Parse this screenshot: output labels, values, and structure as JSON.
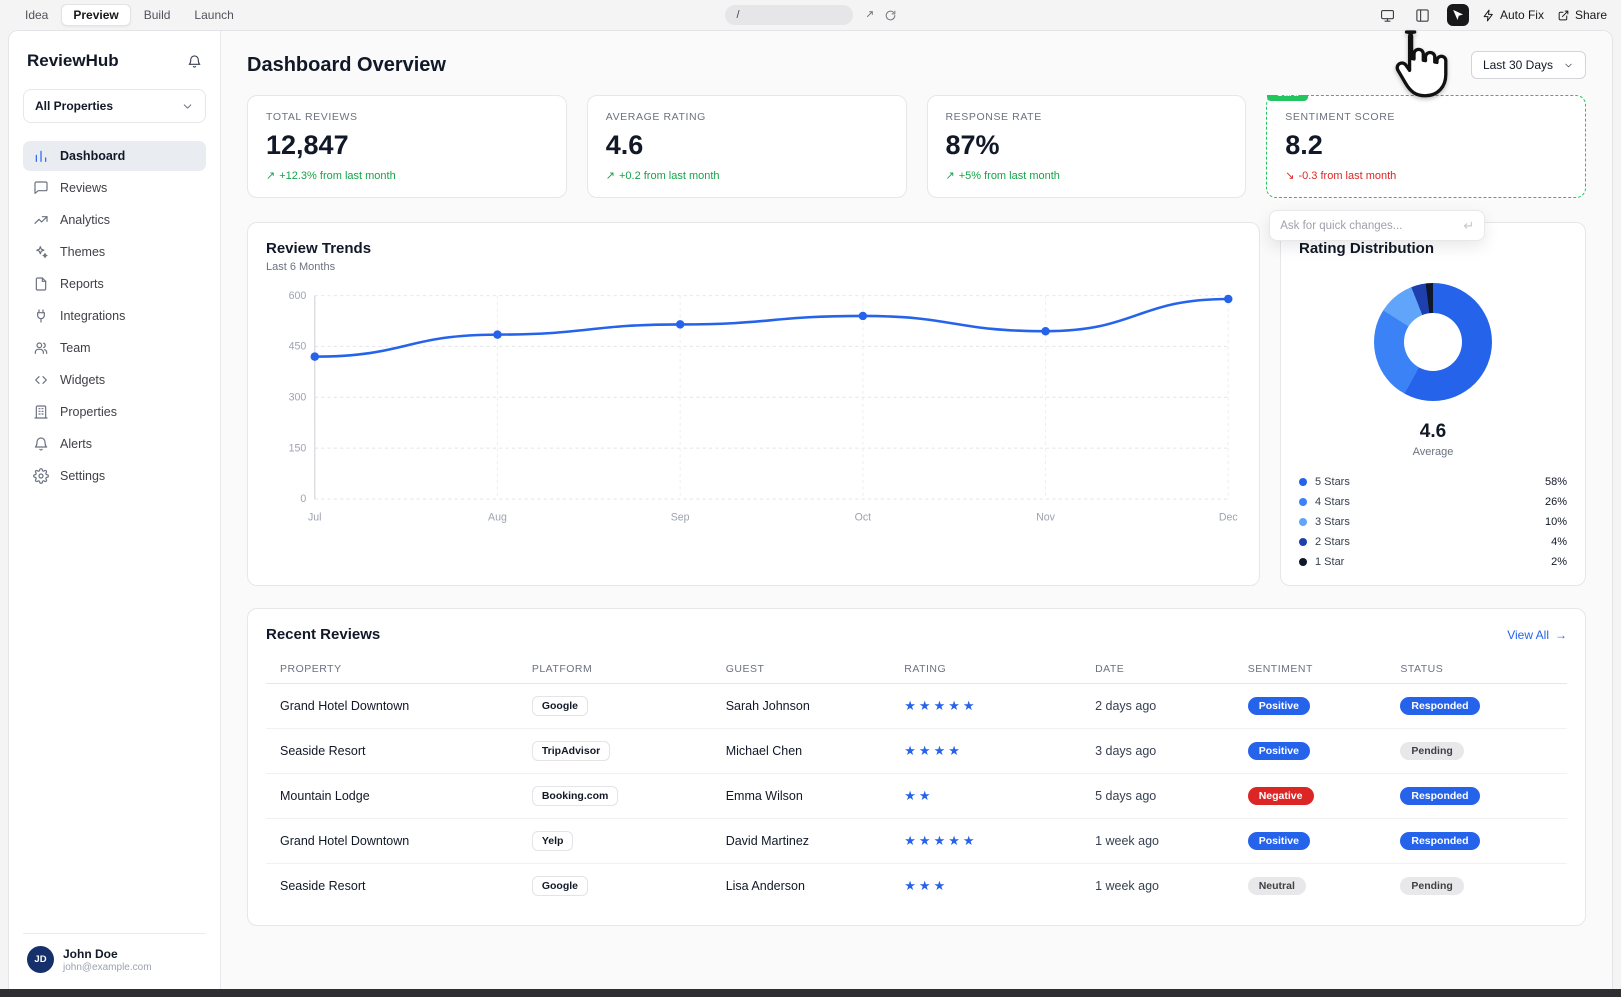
{
  "toolbar": {
    "nav": [
      {
        "label": "Idea",
        "active": false
      },
      {
        "label": "Preview",
        "active": true
      },
      {
        "label": "Build",
        "active": false
      },
      {
        "label": "Launch",
        "active": false
      }
    ],
    "url": "/",
    "auto_fix_label": "Auto Fix",
    "share_label": "Share"
  },
  "sidebar": {
    "brand": "ReviewHub",
    "property_selector": "All Properties",
    "items": [
      {
        "label": "Dashboard",
        "icon": "bar-chart-icon",
        "active": true
      },
      {
        "label": "Reviews",
        "icon": "chat-icon",
        "active": false
      },
      {
        "label": "Analytics",
        "icon": "trending-up-icon",
        "active": false
      },
      {
        "label": "Themes",
        "icon": "sparkles-icon",
        "active": false
      },
      {
        "label": "Reports",
        "icon": "file-icon",
        "active": false
      },
      {
        "label": "Integrations",
        "icon": "plug-icon",
        "active": false
      },
      {
        "label": "Team",
        "icon": "users-icon",
        "active": false
      },
      {
        "label": "Widgets",
        "icon": "code-icon",
        "active": false
      },
      {
        "label": "Properties",
        "icon": "building-icon",
        "active": false
      },
      {
        "label": "Alerts",
        "icon": "bell-icon",
        "active": false
      },
      {
        "label": "Settings",
        "icon": "gear-icon",
        "active": false
      }
    ],
    "user": {
      "initials": "JD",
      "name": "John Doe",
      "email": "john@example.com"
    }
  },
  "header": {
    "title": "Dashboard Overview",
    "date_range": "Last 30 Days"
  },
  "stats": [
    {
      "label": "TOTAL REVIEWS",
      "value": "12,847",
      "delta": "+12.3% from last month",
      "trend": "up",
      "selected": false
    },
    {
      "label": "AVERAGE RATING",
      "value": "4.6",
      "delta": "+0.2 from last month",
      "trend": "up",
      "selected": false
    },
    {
      "label": "RESPONSE RATE",
      "value": "87%",
      "delta": "+5% from last month",
      "trend": "up",
      "selected": false
    },
    {
      "label": "SENTIMENT SCORE",
      "value": "8.2",
      "delta": "-0.3 from last month",
      "trend": "down",
      "selected": true,
      "selection_badge": "Card"
    }
  ],
  "quick_edit": {
    "placeholder": "Ask for quick changes..."
  },
  "chart_data": [
    {
      "type": "line",
      "title": "Review Trends",
      "subtitle": "Last 6 Months",
      "x": [
        "Jul",
        "Aug",
        "Sep",
        "Oct",
        "Nov",
        "Dec"
      ],
      "series": [
        {
          "name": "Reviews",
          "values": [
            420,
            485,
            515,
            540,
            495,
            590
          ]
        }
      ],
      "ylim": [
        0,
        600
      ],
      "yticks": [
        0,
        150,
        300,
        450,
        600
      ],
      "grid": true,
      "line_color": "#2563eb"
    },
    {
      "type": "pie",
      "title": "Rating Distribution",
      "center_value": "4.6",
      "center_label": "Average",
      "segments": [
        {
          "label": "5 Stars",
          "pct": 58,
          "color": "#2563eb"
        },
        {
          "label": "4 Stars",
          "pct": 26,
          "color": "#3b82f6"
        },
        {
          "label": "3 Stars",
          "pct": 10,
          "color": "#60a5fa"
        },
        {
          "label": "2 Stars",
          "pct": 4,
          "color": "#1e40af"
        },
        {
          "label": "1 Star",
          "pct": 2,
          "color": "#0f172a"
        }
      ]
    }
  ],
  "recent_reviews": {
    "title": "Recent Reviews",
    "view_all_label": "View All",
    "columns": [
      "PROPERTY",
      "PLATFORM",
      "GUEST",
      "RATING",
      "DATE",
      "SENTIMENT",
      "STATUS"
    ],
    "rows": [
      {
        "property": "Grand Hotel Downtown",
        "platform": "Google",
        "guest": "Sarah Johnson",
        "rating": 5,
        "date": "2 days ago",
        "sentiment": "Positive",
        "status": "Responded"
      },
      {
        "property": "Seaside Resort",
        "platform": "TripAdvisor",
        "guest": "Michael Chen",
        "rating": 4,
        "date": "3 days ago",
        "sentiment": "Positive",
        "status": "Pending"
      },
      {
        "property": "Mountain Lodge",
        "platform": "Booking.com",
        "guest": "Emma Wilson",
        "rating": 2,
        "date": "5 days ago",
        "sentiment": "Negative",
        "status": "Responded"
      },
      {
        "property": "Grand Hotel Downtown",
        "platform": "Yelp",
        "guest": "David Martinez",
        "rating": 5,
        "date": "1 week ago",
        "sentiment": "Positive",
        "status": "Responded"
      },
      {
        "property": "Seaside Resort",
        "platform": "Google",
        "guest": "Lisa Anderson",
        "rating": 3,
        "date": "1 week ago",
        "sentiment": "Neutral",
        "status": "Pending"
      }
    ]
  },
  "colors": {
    "accent": "#2563eb",
    "positive": "#16a34a",
    "negative": "#dc2626",
    "selection": "#22c55e"
  }
}
